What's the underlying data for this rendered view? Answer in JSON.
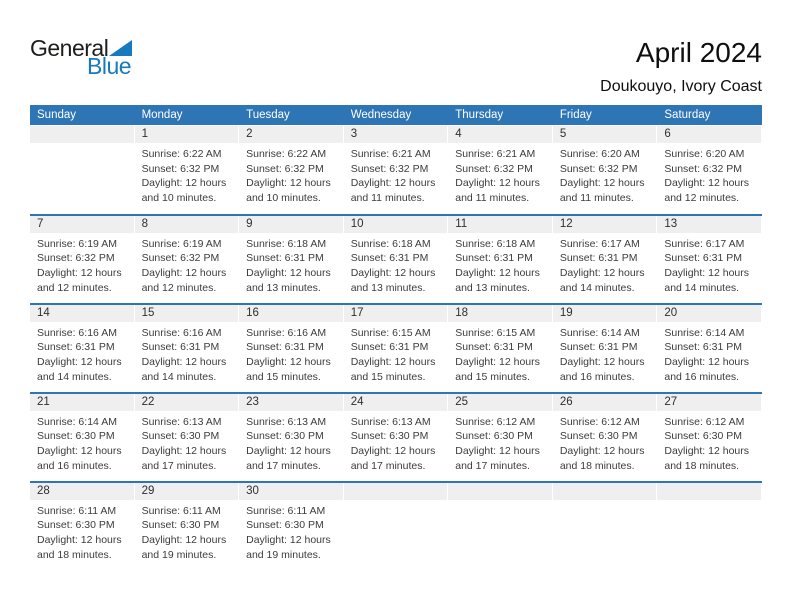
{
  "logo": {
    "general": "General",
    "blue": "Blue"
  },
  "title": "April 2024",
  "subtitle": "Doukouyo, Ivory Coast",
  "colors": {
    "header_blue": "#2E75B6",
    "week_separator_blue": "#2E75B6",
    "day_band_gray": "#EFEFEF",
    "logo_blue": "#1779BE"
  },
  "calendar": {
    "weekdays": [
      "Sunday",
      "Monday",
      "Tuesday",
      "Wednesday",
      "Thursday",
      "Friday",
      "Saturday"
    ],
    "weeks": [
      [
        {
          "day": ""
        },
        {
          "day": "1",
          "sunrise": "Sunrise: 6:22 AM",
          "sunset": "Sunset: 6:32 PM",
          "daylight": "Daylight: 12 hours and 10 minutes."
        },
        {
          "day": "2",
          "sunrise": "Sunrise: 6:22 AM",
          "sunset": "Sunset: 6:32 PM",
          "daylight": "Daylight: 12 hours and 10 minutes."
        },
        {
          "day": "3",
          "sunrise": "Sunrise: 6:21 AM",
          "sunset": "Sunset: 6:32 PM",
          "daylight": "Daylight: 12 hours and 11 minutes."
        },
        {
          "day": "4",
          "sunrise": "Sunrise: 6:21 AM",
          "sunset": "Sunset: 6:32 PM",
          "daylight": "Daylight: 12 hours and 11 minutes."
        },
        {
          "day": "5",
          "sunrise": "Sunrise: 6:20 AM",
          "sunset": "Sunset: 6:32 PM",
          "daylight": "Daylight: 12 hours and 11 minutes."
        },
        {
          "day": "6",
          "sunrise": "Sunrise: 6:20 AM",
          "sunset": "Sunset: 6:32 PM",
          "daylight": "Daylight: 12 hours and 12 minutes."
        }
      ],
      [
        {
          "day": "7",
          "sunrise": "Sunrise: 6:19 AM",
          "sunset": "Sunset: 6:32 PM",
          "daylight": "Daylight: 12 hours and 12 minutes."
        },
        {
          "day": "8",
          "sunrise": "Sunrise: 6:19 AM",
          "sunset": "Sunset: 6:32 PM",
          "daylight": "Daylight: 12 hours and 12 minutes."
        },
        {
          "day": "9",
          "sunrise": "Sunrise: 6:18 AM",
          "sunset": "Sunset: 6:31 PM",
          "daylight": "Daylight: 12 hours and 13 minutes."
        },
        {
          "day": "10",
          "sunrise": "Sunrise: 6:18 AM",
          "sunset": "Sunset: 6:31 PM",
          "daylight": "Daylight: 12 hours and 13 minutes."
        },
        {
          "day": "11",
          "sunrise": "Sunrise: 6:18 AM",
          "sunset": "Sunset: 6:31 PM",
          "daylight": "Daylight: 12 hours and 13 minutes."
        },
        {
          "day": "12",
          "sunrise": "Sunrise: 6:17 AM",
          "sunset": "Sunset: 6:31 PM",
          "daylight": "Daylight: 12 hours and 14 minutes."
        },
        {
          "day": "13",
          "sunrise": "Sunrise: 6:17 AM",
          "sunset": "Sunset: 6:31 PM",
          "daylight": "Daylight: 12 hours and 14 minutes."
        }
      ],
      [
        {
          "day": "14",
          "sunrise": "Sunrise: 6:16 AM",
          "sunset": "Sunset: 6:31 PM",
          "daylight": "Daylight: 12 hours and 14 minutes."
        },
        {
          "day": "15",
          "sunrise": "Sunrise: 6:16 AM",
          "sunset": "Sunset: 6:31 PM",
          "daylight": "Daylight: 12 hours and 14 minutes."
        },
        {
          "day": "16",
          "sunrise": "Sunrise: 6:16 AM",
          "sunset": "Sunset: 6:31 PM",
          "daylight": "Daylight: 12 hours and 15 minutes."
        },
        {
          "day": "17",
          "sunrise": "Sunrise: 6:15 AM",
          "sunset": "Sunset: 6:31 PM",
          "daylight": "Daylight: 12 hours and 15 minutes."
        },
        {
          "day": "18",
          "sunrise": "Sunrise: 6:15 AM",
          "sunset": "Sunset: 6:31 PM",
          "daylight": "Daylight: 12 hours and 15 minutes."
        },
        {
          "day": "19",
          "sunrise": "Sunrise: 6:14 AM",
          "sunset": "Sunset: 6:31 PM",
          "daylight": "Daylight: 12 hours and 16 minutes."
        },
        {
          "day": "20",
          "sunrise": "Sunrise: 6:14 AM",
          "sunset": "Sunset: 6:31 PM",
          "daylight": "Daylight: 12 hours and 16 minutes."
        }
      ],
      [
        {
          "day": "21",
          "sunrise": "Sunrise: 6:14 AM",
          "sunset": "Sunset: 6:30 PM",
          "daylight": "Daylight: 12 hours and 16 minutes."
        },
        {
          "day": "22",
          "sunrise": "Sunrise: 6:13 AM",
          "sunset": "Sunset: 6:30 PM",
          "daylight": "Daylight: 12 hours and 17 minutes."
        },
        {
          "day": "23",
          "sunrise": "Sunrise: 6:13 AM",
          "sunset": "Sunset: 6:30 PM",
          "daylight": "Daylight: 12 hours and 17 minutes."
        },
        {
          "day": "24",
          "sunrise": "Sunrise: 6:13 AM",
          "sunset": "Sunset: 6:30 PM",
          "daylight": "Daylight: 12 hours and 17 minutes."
        },
        {
          "day": "25",
          "sunrise": "Sunrise: 6:12 AM",
          "sunset": "Sunset: 6:30 PM",
          "daylight": "Daylight: 12 hours and 17 minutes."
        },
        {
          "day": "26",
          "sunrise": "Sunrise: 6:12 AM",
          "sunset": "Sunset: 6:30 PM",
          "daylight": "Daylight: 12 hours and 18 minutes."
        },
        {
          "day": "27",
          "sunrise": "Sunrise: 6:12 AM",
          "sunset": "Sunset: 6:30 PM",
          "daylight": "Daylight: 12 hours and 18 minutes."
        }
      ],
      [
        {
          "day": "28",
          "sunrise": "Sunrise: 6:11 AM",
          "sunset": "Sunset: 6:30 PM",
          "daylight": "Daylight: 12 hours and 18 minutes."
        },
        {
          "day": "29",
          "sunrise": "Sunrise: 6:11 AM",
          "sunset": "Sunset: 6:30 PM",
          "daylight": "Daylight: 12 hours and 19 minutes."
        },
        {
          "day": "30",
          "sunrise": "Sunrise: 6:11 AM",
          "sunset": "Sunset: 6:30 PM",
          "daylight": "Daylight: 12 hours and 19 minutes."
        },
        {
          "day": ""
        },
        {
          "day": ""
        },
        {
          "day": ""
        },
        {
          "day": ""
        }
      ]
    ]
  }
}
